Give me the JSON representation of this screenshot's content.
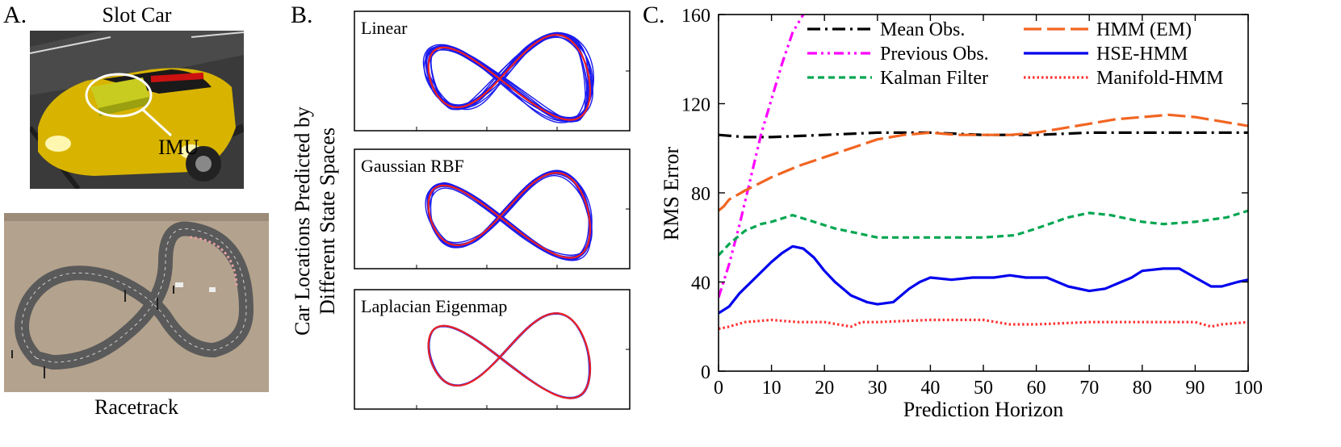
{
  "panel_a": {
    "label": "A.",
    "top_caption": "Slot Car",
    "imu_label": "IMU",
    "bottom_caption": "Racetrack"
  },
  "panel_b": {
    "label": "B.",
    "side_label_line1": "Car Locations Predicted by",
    "side_label_line2": "Different State Spaces",
    "subpanels": [
      {
        "title": "Linear"
      },
      {
        "title": "Gaussian RBF"
      },
      {
        "title": "Laplacian Eigenmap"
      }
    ],
    "colors": {
      "predicted": "#1a1aee",
      "true_track": "#ee2222"
    }
  },
  "chart_data": {
    "type": "line",
    "panel_label": "C.",
    "title": "",
    "xlabel": "Prediction Horizon",
    "ylabel": "RMS Error",
    "xlim": [
      0,
      100
    ],
    "ylim": [
      0,
      160
    ],
    "xticks": [
      0,
      10,
      20,
      30,
      40,
      50,
      60,
      70,
      80,
      90,
      100
    ],
    "yticks": [
      0,
      40,
      80,
      120,
      160
    ],
    "grid": false,
    "legend_position": "top",
    "series": [
      {
        "name": "Mean Obs.",
        "color": "#000000",
        "style": "dashdot",
        "x": [
          0,
          5,
          10,
          20,
          30,
          40,
          50,
          60,
          70,
          80,
          90,
          100
        ],
        "y": [
          106,
          105,
          105,
          106,
          107,
          107,
          106,
          106,
          107,
          107,
          107,
          107
        ]
      },
      {
        "name": "Previous Obs.",
        "color": "#ff00ff",
        "style": "dashdotdot",
        "x": [
          0,
          2,
          4,
          6,
          8,
          10,
          12,
          14,
          16
        ],
        "y": [
          33,
          48,
          66,
          86,
          106,
          122,
          138,
          152,
          160
        ]
      },
      {
        "name": "Kalman Filter",
        "color": "#00a651",
        "style": "dashed",
        "x": [
          0,
          2,
          5,
          8,
          10,
          14,
          18,
          22,
          26,
          30,
          40,
          50,
          56,
          60,
          66,
          70,
          74,
          80,
          84,
          90,
          96,
          100
        ],
        "y": [
          52,
          57,
          63,
          66,
          67,
          70,
          67,
          64,
          62,
          60,
          60,
          60,
          61,
          64,
          69,
          71,
          70,
          67,
          66,
          67,
          69,
          72
        ]
      },
      {
        "name": "HMM (EM)",
        "color": "#f26522",
        "style": "longdash",
        "x": [
          0,
          1,
          2,
          5,
          10,
          15,
          20,
          25,
          30,
          35,
          40,
          45,
          50,
          55,
          60,
          65,
          70,
          75,
          80,
          85,
          90,
          95,
          100
        ],
        "y": [
          72,
          74,
          77,
          81,
          87,
          92,
          96,
          100,
          104,
          106,
          107,
          106,
          106,
          106,
          107,
          109,
          111,
          113,
          114,
          115,
          114,
          112,
          110
        ]
      },
      {
        "name": "HSE-HMM",
        "color": "#0000ee",
        "style": "solid",
        "x": [
          0,
          2,
          4,
          7,
          10,
          12,
          14,
          16,
          18,
          20,
          22,
          25,
          28,
          30,
          33,
          36,
          38,
          40,
          44,
          48,
          52,
          55,
          58,
          62,
          66,
          70,
          73,
          76,
          78,
          80,
          84,
          87,
          90,
          93,
          95,
          98,
          100
        ],
        "y": [
          26,
          29,
          35,
          42,
          49,
          53,
          56,
          55,
          51,
          45,
          40,
          34,
          31,
          30,
          31,
          37,
          40,
          42,
          41,
          42,
          42,
          43,
          42,
          42,
          38,
          36,
          37,
          40,
          42,
          45,
          46,
          46,
          42,
          38,
          38,
          40,
          41
        ]
      },
      {
        "name": "Manifold-HMM",
        "color": "#ff3333",
        "style": "dotted",
        "x": [
          0,
          2,
          5,
          10,
          15,
          20,
          25,
          27,
          30,
          40,
          50,
          55,
          60,
          70,
          80,
          90,
          93,
          95,
          100
        ],
        "y": [
          19,
          20,
          22,
          23,
          22,
          22,
          20,
          22,
          22,
          23,
          23,
          21,
          21,
          22,
          22,
          22,
          20,
          21,
          22
        ]
      }
    ]
  }
}
